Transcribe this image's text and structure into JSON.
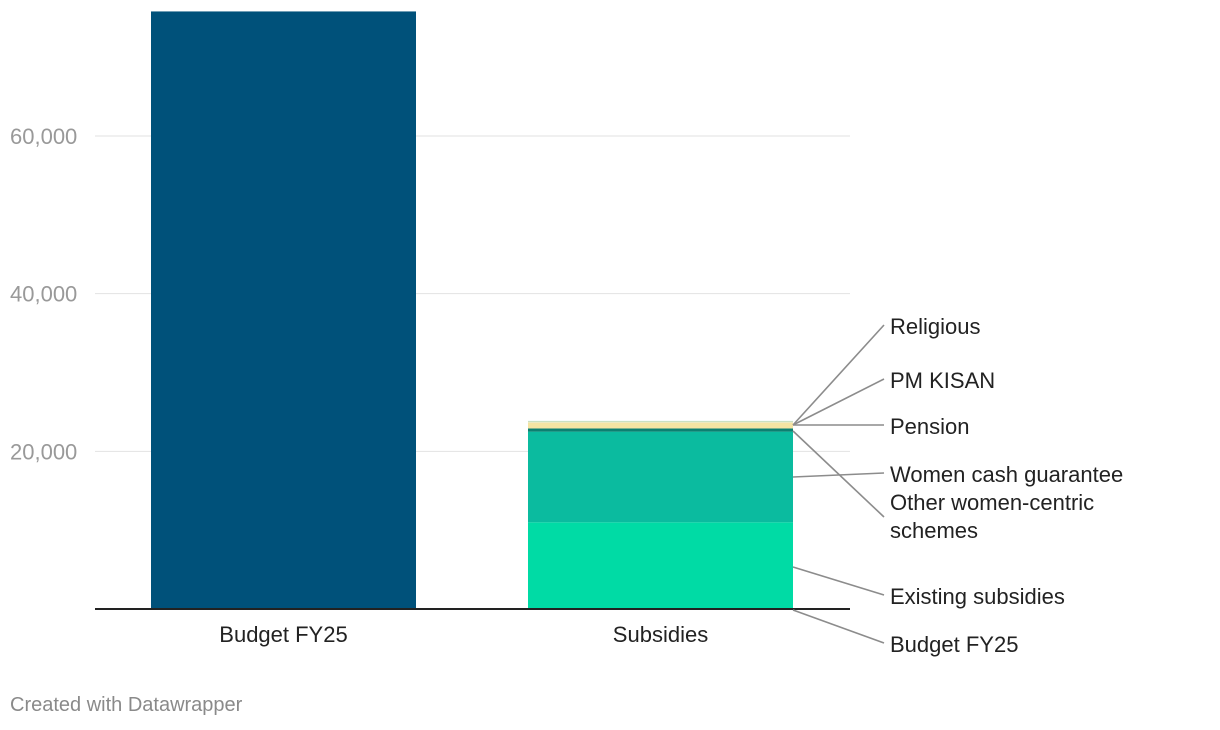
{
  "chart_data": {
    "type": "bar",
    "stacked": true,
    "categories": [
      "Budget FY25",
      "Subsidies"
    ],
    "ylim": [
      0,
      75000
    ],
    "yticks": [
      20000,
      40000,
      60000
    ],
    "ytick_labels": [
      "20,000",
      "40,000",
      "60,000"
    ],
    "grid": true,
    "series": [
      {
        "name": "Budget FY25",
        "color": "#00517a",
        "values": [
          75800,
          0
        ]
      },
      {
        "name": "Existing subsidies",
        "color": "#00dba5",
        "values": [
          0,
          11000
        ]
      },
      {
        "name": "Other women-centric schemes",
        "color": "#0bbb9f",
        "values": [
          0,
          11500
        ]
      },
      {
        "name": "Women cash guarantee",
        "color": "#0d7f70",
        "values": [
          0,
          400
        ]
      },
      {
        "name": "Pension",
        "color": "#f4e4a3",
        "values": [
          0,
          700
        ]
      },
      {
        "name": "PM KISAN",
        "color": "#ece8c0",
        "values": [
          0,
          200
        ]
      },
      {
        "name": "Religious",
        "color": "#a8d9c4",
        "values": [
          0,
          60
        ]
      }
    ],
    "segment_labels": [
      {
        "text": "Religious",
        "series": "Religious"
      },
      {
        "text": "PM KISAN",
        "series": "PM KISAN"
      },
      {
        "text": "Pension",
        "series": "Pension"
      },
      {
        "text": "Women cash guarantee",
        "series": "Women cash guarantee"
      },
      {
        "lines": [
          "Other women-centric",
          "schemes"
        ],
        "series": "Other women-centric schemes"
      },
      {
        "text": "Existing subsidies",
        "series": "Existing subsidies"
      },
      {
        "text": "Budget FY25",
        "series": "Budget FY25"
      }
    ]
  },
  "footer": {
    "credit": "Created with Datawrapper"
  }
}
